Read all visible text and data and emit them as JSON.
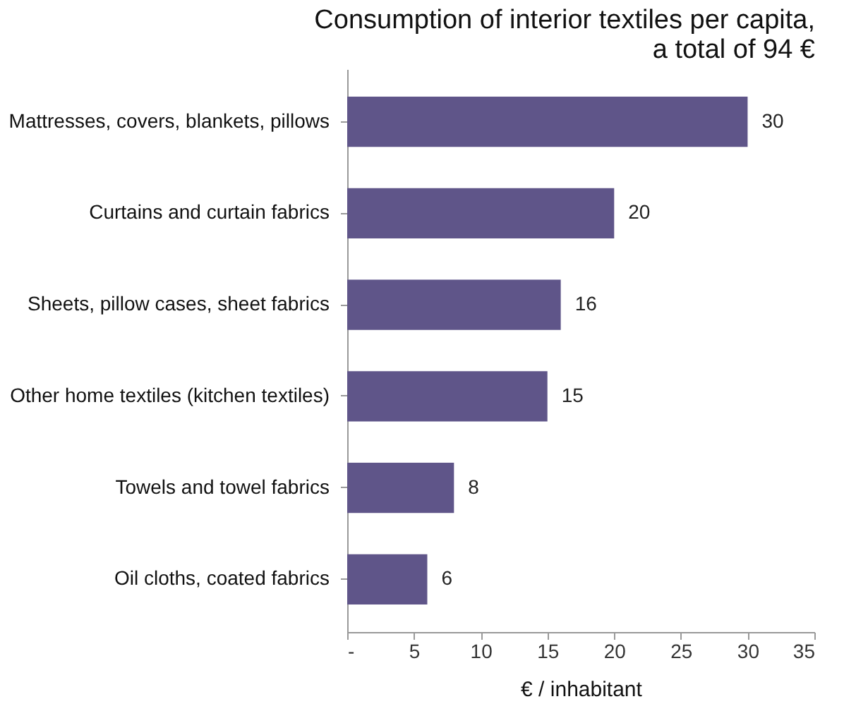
{
  "chart_data": {
    "type": "bar",
    "orientation": "horizontal",
    "title": "Consumption of interior textiles per capita, a total of 94 €",
    "xlabel": "€ / inhabitant",
    "categories": [
      "Mattresses, covers, blankets, pillows",
      "Curtains and curtain fabrics",
      "Sheets, pillow cases, sheet fabrics",
      "Other home textiles (kitchen textiles)",
      "Towels and towel fabrics",
      "Oil cloths, coated fabrics"
    ],
    "values": [
      30,
      20,
      16,
      15,
      8,
      6
    ],
    "color": "#5f5589",
    "data_labels": true,
    "grid": false,
    "xlim": [
      0,
      35
    ],
    "xticks": [
      {
        "value": 0,
        "label": "-"
      },
      5,
      10,
      15,
      20,
      25,
      30,
      35
    ]
  }
}
